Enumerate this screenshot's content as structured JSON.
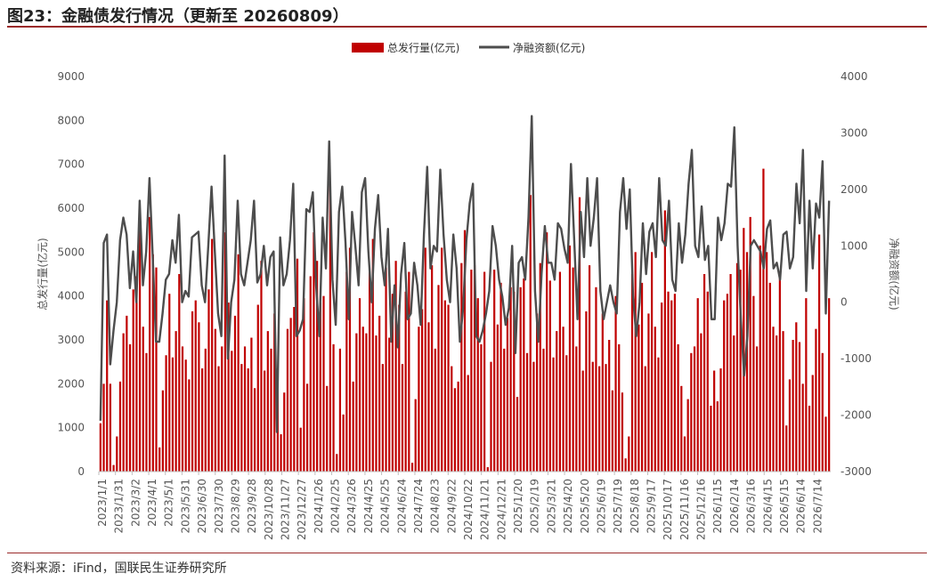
{
  "header": {
    "title": "图23：金融债发行情况（更新至 20260809）"
  },
  "footer": {
    "source": "资料来源：iFind，国联民生证券研究所"
  },
  "colors": {
    "bar": "#c00000",
    "line": "#4d4d4d",
    "axis": "#bfbfbf",
    "accent": "#9a2a2a"
  },
  "chart_data": {
    "type": "bar",
    "legend_position": "top-center",
    "grid": false,
    "series": [
      {
        "name": "总发行量(亿元)",
        "type": "bar",
        "axis": "left"
      },
      {
        "name": "净融资额(亿元)",
        "type": "line",
        "axis": "right"
      }
    ],
    "y_left": {
      "label": "总发行量(亿元)",
      "min": 0,
      "max": 9000,
      "ticks": [
        "0",
        "1000",
        "2000",
        "3000",
        "4000",
        "5000",
        "6000",
        "7000",
        "8000",
        "9000"
      ]
    },
    "y_right": {
      "label": "净融资额(亿元)",
      "min": -3000,
      "max": 4000,
      "ticks": [
        "-3000",
        "-2000",
        "-1000",
        "0",
        "1000",
        "2000",
        "3000",
        "4000"
      ]
    },
    "x_tick_labels": [
      "2023/1/1",
      "2023/1/31",
      "2023/3/2",
      "2023/4/1",
      "2023/5/1",
      "2023/5/31",
      "2023/6/30",
      "2023/7/30",
      "2023/8/29",
      "2023/9/28",
      "2023/10/28",
      "2023/11/27",
      "2023/12/27",
      "2024/1/26",
      "2024/2/25",
      "2024/3/26",
      "2024/4/25",
      "2024/5/25",
      "2024/6/24",
      "2024/7/24",
      "2024/8/23",
      "2024/9/22",
      "2024/10/22",
      "2024/11/21",
      "2024/12/21",
      "2025/1/20",
      "2025/2/19",
      "2025/3/21",
      "2025/4/20",
      "2025/5/20",
      "2025/6/19",
      "2025/7/19",
      "2025/8/18",
      "2025/9/17",
      "2025/10/17",
      "2025/11/16",
      "2025/12/16",
      "2026/1/15",
      "2026/2/14",
      "2026/3/16",
      "2026/4/15",
      "2026/5/15",
      "2026/6/14",
      "2026/7/14"
    ],
    "bars": [
      1100,
      2000,
      3900,
      2000,
      150,
      800,
      2050,
      3150,
      3550,
      2900,
      4150,
      4450,
      5750,
      3300,
      2700,
      5800,
      4950,
      4650,
      550,
      1850,
      2650,
      4050,
      2600,
      3200,
      4500,
      2850,
      2550,
      2100,
      3650,
      3900,
      3400,
      2350,
      2800,
      4150,
      5300,
      3250,
      2400,
      2850,
      5450,
      3850,
      2750,
      3550,
      4950,
      2450,
      2850,
      2350,
      3050,
      1900,
      3800,
      4800,
      2300,
      3200,
      2800,
      3600,
      2350,
      850,
      1800,
      3250,
      3500,
      3750,
      4850,
      1000,
      3950,
      2000,
      4450,
      5450,
      4800,
      3850,
      4000,
      1950,
      6550,
      2900,
      400,
      2800,
      1300,
      4550,
      5100,
      2050,
      3150,
      3950,
      3300,
      3150,
      4550,
      5300,
      3100,
      3550,
      2450,
      4650,
      3050,
      4050,
      4800,
      3800,
      2450,
      4100,
      4550,
      200,
      1650,
      3300,
      3700,
      5100,
      3400,
      4700,
      2800,
      4250,
      5100,
      3900,
      3800,
      2400,
      1900,
      2050,
      4750,
      5500,
      2200,
      4600,
      4700,
      3950,
      2900,
      4550,
      100,
      2500,
      4600,
      3350,
      4300,
      2800,
      3500,
      4200,
      4100,
      1700,
      4200,
      4400,
      2700,
      6300,
      2500,
      3600,
      4750,
      2800,
      5450,
      4350,
      2600,
      3200,
      4550,
      3300,
      2650,
      5150,
      4650,
      2850,
      6250,
      2300,
      3650,
      4700,
      2500,
      4200,
      2400,
      3600,
      2450,
      3000,
      1850,
      4000,
      2900,
      1800,
      300,
      800,
      4500,
      5000,
      3350,
      4300,
      2400,
      3600,
      5000,
      3300,
      2600,
      3850,
      5950,
      4100,
      3900,
      4050,
      2900,
      1950,
      800,
      1650,
      2700,
      2850,
      3950,
      3150,
      4500,
      4100,
      1500,
      2300,
      1600,
      2350,
      3900,
      4050,
      4500,
      3100,
      4750,
      4600,
      5550,
      5000,
      5800,
      4000,
      2850,
      5150,
      6900,
      5000,
      4300,
      3300,
      3100,
      4400,
      3200,
      1050,
      2100,
      3000,
      3400,
      2950,
      2000,
      3950,
      1500,
      2200,
      3250,
      5400,
      2700,
      1250,
      3950
    ],
    "net": [
      -2100,
      1050,
      1200,
      -1100,
      -500,
      0,
      1100,
      1500,
      1200,
      250,
      900,
      0,
      1800,
      300,
      900,
      2200,
      800,
      -700,
      -700,
      -200,
      400,
      500,
      1100,
      700,
      1550,
      0,
      200,
      100,
      1150,
      1200,
      1250,
      300,
      0,
      1000,
      2050,
      900,
      -200,
      -600,
      2600,
      -1000,
      0,
      400,
      1800,
      500,
      300,
      700,
      1100,
      1800,
      350,
      500,
      1000,
      300,
      800,
      900,
      -2300,
      1150,
      300,
      500,
      1100,
      2100,
      -600,
      -500,
      -300,
      1650,
      1600,
      1950,
      300,
      -600,
      1500,
      600,
      2850,
      400,
      -400,
      1600,
      2050,
      1050,
      -300,
      1600,
      1000,
      300,
      1950,
      2200,
      900,
      0,
      1300,
      1900,
      800,
      300,
      1300,
      -700,
      300,
      -800,
      500,
      1050,
      -300,
      -200,
      700,
      300,
      -400,
      1200,
      2400,
      600,
      1000,
      900,
      2350,
      1200,
      400,
      0,
      1200,
      600,
      -700,
      -100,
      1100,
      1750,
      2100,
      -600,
      -700,
      -500,
      -200,
      200,
      1350,
      1000,
      400,
      100,
      -400,
      -100,
      1000,
      -900,
      700,
      800,
      400,
      1500,
      3300,
      200,
      -700,
      500,
      1350,
      700,
      700,
      400,
      1400,
      1300,
      950,
      700,
      2450,
      1100,
      -300,
      1600,
      800,
      2200,
      1000,
      1500,
      2200,
      200,
      -300,
      0,
      300,
      0,
      -200,
      1600,
      2200,
      1300,
      2000,
      100,
      -600,
      0,
      1400,
      500,
      1250,
      1400,
      800,
      2200,
      1100,
      1000,
      1800,
      400,
      200,
      1400,
      700,
      1200,
      2100,
      2700,
      1000,
      800,
      1700,
      750,
      1000,
      -300,
      -300,
      1500,
      1100,
      1400,
      2100,
      2050,
      3100,
      1000,
      -300,
      -1300,
      -600,
      1000,
      1100,
      1000,
      900,
      600,
      1300,
      1450,
      600,
      700,
      400,
      1200,
      1250,
      600,
      800,
      2100,
      1400,
      2700,
      200,
      1800,
      600,
      1750,
      1500,
      2500,
      -200,
      1800
    ]
  }
}
